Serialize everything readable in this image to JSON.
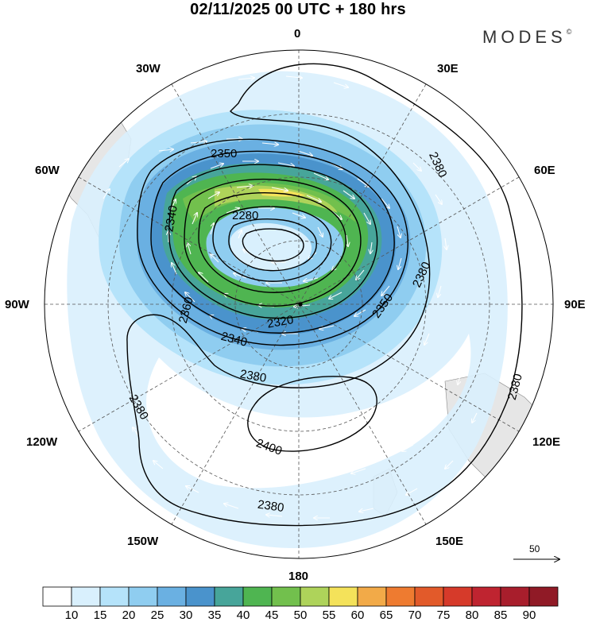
{
  "title": "02/11/2025  00 UTC  + 180 hrs",
  "brand": "MODES",
  "brand_mark": "©",
  "longitude_labels": {
    "n0": "0",
    "w30": "30W",
    "e30": "30E",
    "w60": "60W",
    "e60": "60E",
    "w90": "90W",
    "e90": "90E",
    "w120": "120W",
    "e120": "120E",
    "w150": "150W",
    "e150": "150E",
    "s180": "180"
  },
  "contour_labels": [
    {
      "id": "2350-a",
      "text": "2350"
    },
    {
      "id": "2380-ne",
      "text": "2380"
    },
    {
      "id": "2340-w",
      "text": "2340"
    },
    {
      "id": "2280",
      "text": "2280"
    },
    {
      "id": "2380-e",
      "text": "2380"
    },
    {
      "id": "2360",
      "text": "2360"
    },
    {
      "id": "2350-b",
      "text": "2350"
    },
    {
      "id": "2320",
      "text": "2320"
    },
    {
      "id": "2340-s",
      "text": "2340"
    },
    {
      "id": "2380-c",
      "text": "2380"
    },
    {
      "id": "2380-se",
      "text": "2380"
    },
    {
      "id": "2380-sw",
      "text": "2380"
    },
    {
      "id": "2400",
      "text": "2400"
    },
    {
      "id": "2380-s",
      "text": "2380"
    }
  ],
  "wind_reference": {
    "value": "50",
    "unit_vector": "arrow"
  },
  "colorbar": {
    "colors": [
      "#ffffff",
      "#d9f0fd",
      "#b5e3fa",
      "#8fcdf0",
      "#6ab0e2",
      "#4a93cc",
      "#47a59a",
      "#4fb551",
      "#72c04d",
      "#aed35a",
      "#f4e25a",
      "#f2aa48",
      "#ee7b30",
      "#e25a2a",
      "#d63a2a",
      "#bf2430",
      "#a81e2c",
      "#901a26"
    ],
    "labels": [
      "10",
      "15",
      "20",
      "25",
      "30",
      "35",
      "40",
      "45",
      "50",
      "55",
      "60",
      "65",
      "70",
      "75",
      "80",
      "85",
      "90"
    ]
  },
  "colors": {
    "contour": "#000000",
    "land": "#e6e6e6",
    "grid": "#555555"
  }
}
